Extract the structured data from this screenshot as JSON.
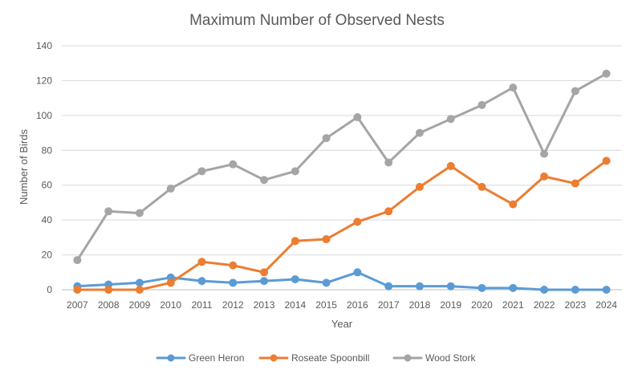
{
  "chart_data": {
    "type": "line",
    "title": "Maximum Number of Observed Nests",
    "xlabel": "Year",
    "ylabel": "Number of Birds",
    "x": [
      "2007",
      "2008",
      "2009",
      "2010",
      "2011",
      "2012",
      "2013",
      "2014",
      "2015",
      "2016",
      "2017",
      "2018",
      "2019",
      "2020",
      "2021",
      "2022",
      "2023",
      "2024"
    ],
    "ylim": [
      0,
      140
    ],
    "y_ticks": [
      0,
      20,
      40,
      60,
      80,
      100,
      120,
      140
    ],
    "y_tick_labels": [
      "0",
      "20",
      "40",
      "60",
      "80",
      "100",
      "120",
      "140"
    ],
    "grid": true,
    "legend_position": "bottom",
    "series": [
      {
        "name": "Green Heron",
        "color": "#5B9BD5",
        "values": [
          2,
          3,
          4,
          7,
          5,
          4,
          5,
          6,
          4,
          10,
          2,
          2,
          2,
          1,
          1,
          0,
          0,
          0
        ]
      },
      {
        "name": "Roseate Spoonbill",
        "color": "#ED7D31",
        "values": [
          0,
          0,
          0,
          4,
          16,
          14,
          10,
          28,
          29,
          39,
          45,
          59,
          71,
          59,
          49,
          65,
          61,
          74
        ]
      },
      {
        "name": "Wood Stork",
        "color": "#A5A5A5",
        "values": [
          17,
          45,
          44,
          58,
          68,
          72,
          63,
          68,
          87,
          99,
          73,
          90,
          98,
          106,
          116,
          78,
          114,
          124
        ]
      }
    ]
  }
}
